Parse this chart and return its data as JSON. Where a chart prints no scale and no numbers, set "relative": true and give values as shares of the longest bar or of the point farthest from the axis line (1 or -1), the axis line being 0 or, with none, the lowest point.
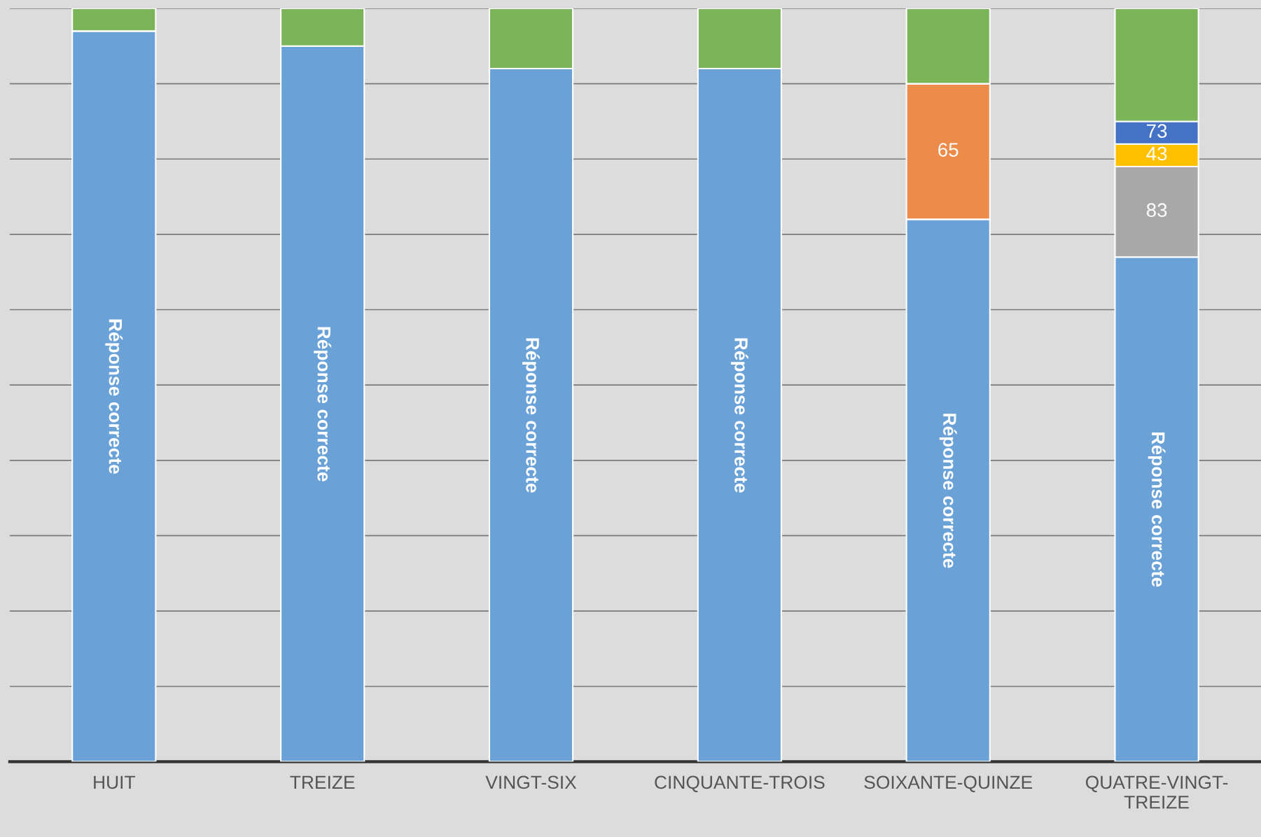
{
  "chart_data": {
    "type": "bar",
    "stacked": true,
    "relative": true,
    "grid": "y",
    "categories": [
      "HUIT",
      "TREIZE",
      "VINGT-SIX",
      "CINQUANTE-TROIS",
      "SOIXANTE-QUINZE",
      "QUATRE-VINGT-TREIZE"
    ],
    "series": [
      {
        "name": "Réponse correcte",
        "color": "#6aa2d8",
        "values": [
          0.97,
          0.95,
          0.92,
          0.92,
          0.72,
          0.67
        ]
      },
      {
        "name": "65",
        "color": "#ed8b4a",
        "values": [
          0,
          0,
          0,
          0,
          0.18,
          0
        ]
      },
      {
        "name": "83",
        "color": "#a8a8a8",
        "values": [
          0,
          0,
          0,
          0,
          0,
          0.12
        ]
      },
      {
        "name": "43",
        "color": "#ffc000",
        "values": [
          0,
          0,
          0,
          0,
          0,
          0.03
        ]
      },
      {
        "name": "73",
        "color": "#4472c4",
        "values": [
          0,
          0,
          0,
          0,
          0,
          0.03
        ]
      },
      {
        "color": "#7cb45a",
        "values": [
          0.03,
          0.05,
          0.08,
          0.08,
          0.1,
          0.15
        ]
      }
    ]
  }
}
